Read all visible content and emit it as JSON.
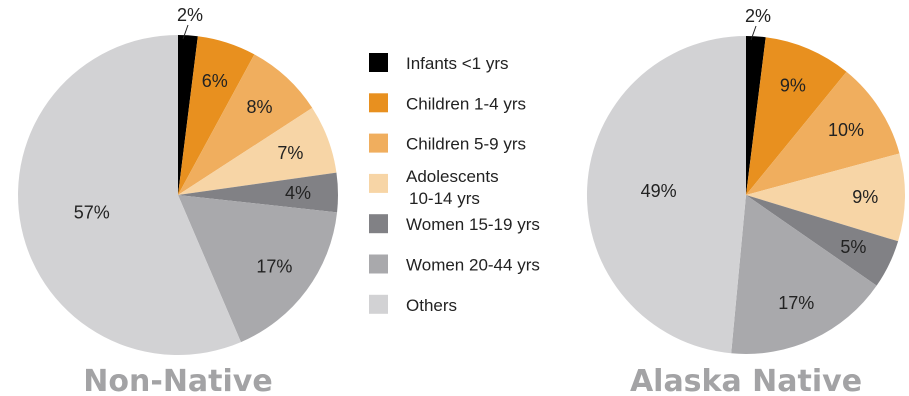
{
  "chart_data": [
    {
      "type": "pie",
      "title": "Non-Native",
      "categories": [
        "Infants <1 yrs",
        "Children 1-4 yrs",
        "Children 5-9 yrs",
        "Adolescents 10-14 yrs",
        "Women 15-19 yrs",
        "Women 20-44 yrs",
        "Others"
      ],
      "values": [
        2,
        6,
        8,
        7,
        4,
        17,
        57
      ],
      "labels": [
        "2%",
        "6%",
        "8%",
        "7%",
        "4%",
        "17%",
        "57%"
      ]
    },
    {
      "type": "pie",
      "title": "Alaska Native",
      "categories": [
        "Infants <1 yrs",
        "Children 1-4 yrs",
        "Children 5-9 yrs",
        "Adolescents 10-14 yrs",
        "Women 15-19 yrs",
        "Women 20-44 yrs",
        "Others"
      ],
      "values": [
        2,
        9,
        10,
        9,
        5,
        17,
        49
      ],
      "labels": [
        "2%",
        "9%",
        "10%",
        "9%",
        "5%",
        "17%",
        "49%"
      ]
    }
  ],
  "legend": {
    "placement": "center",
    "items": [
      {
        "lines": [
          "Infants <1 yrs"
        ],
        "color": "#000000"
      },
      {
        "lines": [
          "Children 1-4 yrs"
        ],
        "color": "#e8901f"
      },
      {
        "lines": [
          "Children 5-9 yrs"
        ],
        "color": "#f0ae5e"
      },
      {
        "lines": [
          "Adolescents",
          "10-14 yrs"
        ],
        "color": "#f7d5a6"
      },
      {
        "lines": [
          "Women 15-19 yrs"
        ],
        "color": "#818185"
      },
      {
        "lines": [
          "Women 20-44 yrs"
        ],
        "color": "#a9a9ac"
      },
      {
        "lines": [
          "Others"
        ],
        "color": "#d2d2d4"
      }
    ]
  },
  "colors": [
    "#000000",
    "#e8901f",
    "#f0ae5e",
    "#f7d5a6",
    "#818185",
    "#a9a9ac",
    "#d2d2d4"
  ]
}
